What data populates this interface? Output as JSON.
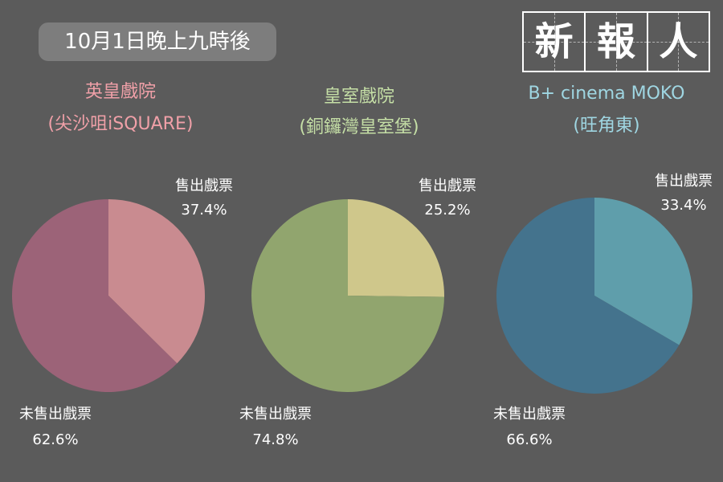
{
  "header": {
    "date_label": "10月1日晚上九時後"
  },
  "logo": {
    "chars": [
      "新",
      "報",
      "人"
    ]
  },
  "chart_data": [
    {
      "type": "pie",
      "title": "英皇戲院",
      "subtitle": "(尖沙咀iSQUARE)",
      "title_color": "#f0a0a8",
      "slices": [
        {
          "label": "售出戲票",
          "value": 37.4,
          "value_label": "37.4%",
          "color": "#c98b90"
        },
        {
          "label": "未售出戲票",
          "value": 62.6,
          "value_label": "62.6%",
          "color": "#9c6378"
        }
      ]
    },
    {
      "type": "pie",
      "title": "皇室戲院",
      "subtitle": "(銅鑼灣皇室堡)",
      "title_color": "#c5dfa6",
      "slices": [
        {
          "label": "售出戲票",
          "value": 25.2,
          "value_label": "25.2%",
          "color": "#cfc78b"
        },
        {
          "label": "未售出戲票",
          "value": 74.8,
          "value_label": "74.8%",
          "color": "#91a56e"
        }
      ]
    },
    {
      "type": "pie",
      "title": "B+ cinema MOKO",
      "subtitle": "(旺角東)",
      "title_color": "#9fd6e2",
      "slices": [
        {
          "label": "售出戲票",
          "value": 33.4,
          "value_label": "33.4%",
          "color": "#5f9eab"
        },
        {
          "label": "未售出戲票",
          "value": 66.6,
          "value_label": "66.6%",
          "color": "#44738d"
        }
      ]
    }
  ]
}
